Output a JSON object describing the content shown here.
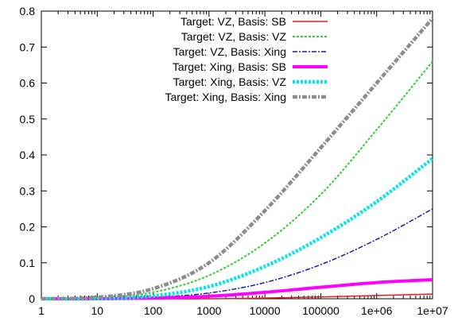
{
  "chart_data": {
    "type": "line",
    "title": "",
    "xlabel": "",
    "ylabel": "",
    "xscale": "log",
    "xlim": [
      1,
      10000000
    ],
    "ylim": [
      0,
      0.8
    ],
    "grid": false,
    "legend_position": "top-right",
    "xticks": [
      "1",
      "10",
      "100",
      "1000",
      "10000",
      "100000",
      "1e+06",
      "1e+07"
    ],
    "yticks": [
      "0",
      "0.1",
      "0.2",
      "0.3",
      "0.4",
      "0.5",
      "0.6",
      "0.7",
      "0.8"
    ],
    "x": [
      1,
      10,
      100,
      1000,
      10000,
      100000,
      1000000,
      10000000
    ],
    "series": [
      {
        "name": "Target: VZ, Basis: SB",
        "color": "#e41a1c",
        "dash": "solid",
        "values": [
          0,
          0,
          0,
          0,
          0.002,
          0.005,
          0.009,
          0.013
        ]
      },
      {
        "name": "Target: VZ, Basis: VZ",
        "color": "#33cc33",
        "dash": "dotted",
        "values": [
          0,
          0.002,
          0.018,
          0.065,
          0.155,
          0.29,
          0.47,
          0.66
        ]
      },
      {
        "name": "Target: VZ, Basis: Xing",
        "color": "#1a1aa6",
        "dash": "dashdot",
        "values": [
          0,
          0,
          0.004,
          0.016,
          0.045,
          0.095,
          0.165,
          0.25
        ]
      },
      {
        "name": "Target: Xing, Basis: SB",
        "color": "#ff00ff",
        "dash": "solid-thick",
        "values": [
          0,
          0,
          0.002,
          0.007,
          0.018,
          0.032,
          0.045,
          0.053
        ]
      },
      {
        "name": "Target: Xing, Basis: VZ",
        "color": "#00e5ee",
        "dash": "dotted-thick",
        "values": [
          0,
          0,
          0.008,
          0.034,
          0.09,
          0.17,
          0.27,
          0.39
        ]
      },
      {
        "name": "Target: Xing, Basis: Xing",
        "color": "#8c8c8c",
        "dash": "dashdot-thick",
        "values": [
          0,
          0.004,
          0.028,
          0.1,
          0.245,
          0.42,
          0.6,
          0.78
        ]
      }
    ]
  }
}
